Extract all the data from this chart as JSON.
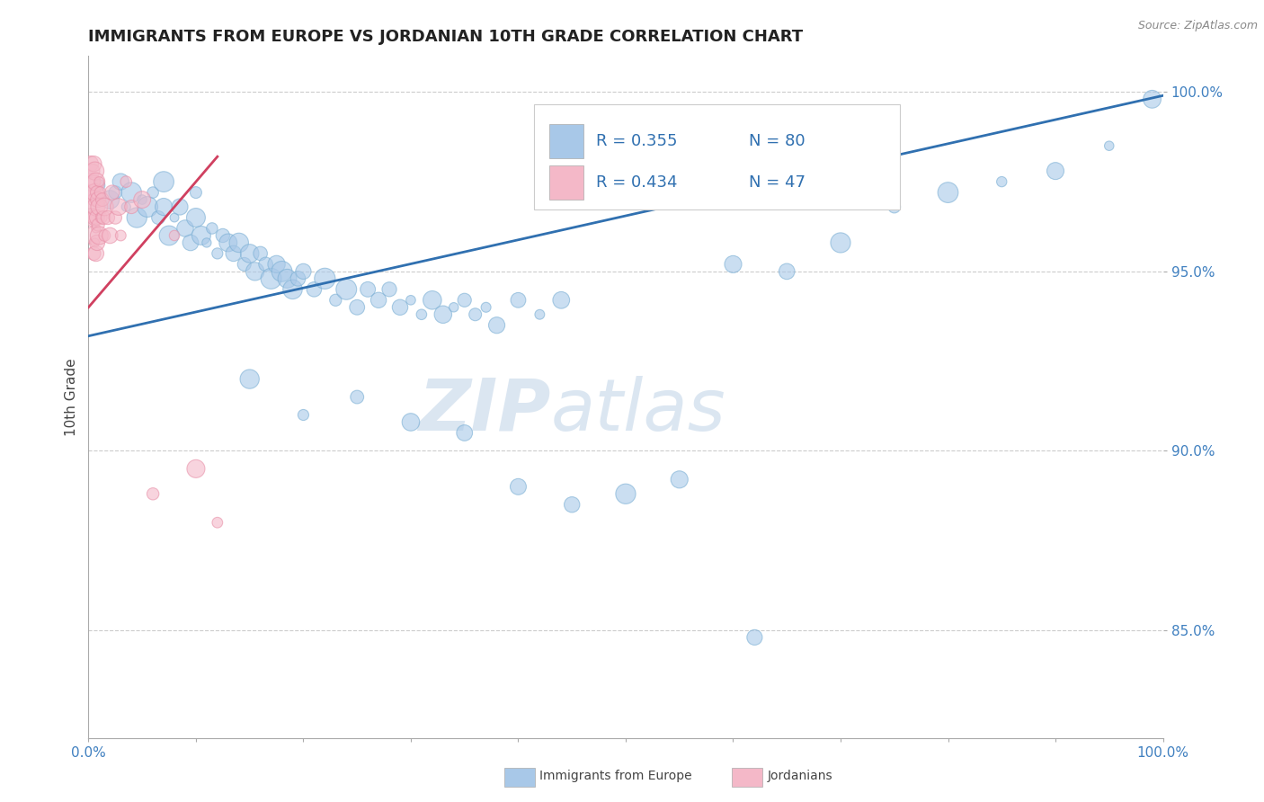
{
  "title": "IMMIGRANTS FROM EUROPE VS JORDANIAN 10TH GRADE CORRELATION CHART",
  "source": "Source: ZipAtlas.com",
  "ylabel": "10th Grade",
  "legend_blue_label": "Immigrants from Europe",
  "legend_pink_label": "Jordanians",
  "R_blue": 0.355,
  "N_blue": 80,
  "R_pink": 0.434,
  "N_pink": 47,
  "blue_color": "#a8c8e8",
  "pink_color": "#f4b8c8",
  "blue_edge_color": "#7aafd4",
  "pink_edge_color": "#e890a8",
  "blue_line_color": "#3070b0",
  "pink_line_color": "#d04060",
  "watermark_color": "#d8e4f0",
  "ytick_color": "#4080c0",
  "xtick_color": "#4080c0",
  "blue_dots": [
    [
      0.01,
      0.974
    ],
    [
      0.02,
      0.97
    ],
    [
      0.025,
      0.972
    ],
    [
      0.03,
      0.975
    ],
    [
      0.035,
      0.968
    ],
    [
      0.04,
      0.972
    ],
    [
      0.045,
      0.965
    ],
    [
      0.05,
      0.97
    ],
    [
      0.055,
      0.968
    ],
    [
      0.06,
      0.972
    ],
    [
      0.065,
      0.965
    ],
    [
      0.07,
      0.968
    ],
    [
      0.07,
      0.975
    ],
    [
      0.075,
      0.96
    ],
    [
      0.08,
      0.965
    ],
    [
      0.085,
      0.968
    ],
    [
      0.09,
      0.962
    ],
    [
      0.095,
      0.958
    ],
    [
      0.1,
      0.965
    ],
    [
      0.1,
      0.972
    ],
    [
      0.105,
      0.96
    ],
    [
      0.11,
      0.958
    ],
    [
      0.115,
      0.962
    ],
    [
      0.12,
      0.955
    ],
    [
      0.125,
      0.96
    ],
    [
      0.13,
      0.958
    ],
    [
      0.135,
      0.955
    ],
    [
      0.14,
      0.958
    ],
    [
      0.145,
      0.952
    ],
    [
      0.15,
      0.955
    ],
    [
      0.155,
      0.95
    ],
    [
      0.16,
      0.955
    ],
    [
      0.165,
      0.952
    ],
    [
      0.17,
      0.948
    ],
    [
      0.175,
      0.952
    ],
    [
      0.18,
      0.95
    ],
    [
      0.185,
      0.948
    ],
    [
      0.19,
      0.945
    ],
    [
      0.195,
      0.948
    ],
    [
      0.2,
      0.95
    ],
    [
      0.21,
      0.945
    ],
    [
      0.22,
      0.948
    ],
    [
      0.23,
      0.942
    ],
    [
      0.24,
      0.945
    ],
    [
      0.25,
      0.94
    ],
    [
      0.26,
      0.945
    ],
    [
      0.27,
      0.942
    ],
    [
      0.28,
      0.945
    ],
    [
      0.29,
      0.94
    ],
    [
      0.3,
      0.942
    ],
    [
      0.31,
      0.938
    ],
    [
      0.32,
      0.942
    ],
    [
      0.33,
      0.938
    ],
    [
      0.34,
      0.94
    ],
    [
      0.35,
      0.942
    ],
    [
      0.36,
      0.938
    ],
    [
      0.37,
      0.94
    ],
    [
      0.38,
      0.935
    ],
    [
      0.4,
      0.942
    ],
    [
      0.42,
      0.938
    ],
    [
      0.44,
      0.942
    ],
    [
      0.15,
      0.92
    ],
    [
      0.2,
      0.91
    ],
    [
      0.25,
      0.915
    ],
    [
      0.3,
      0.908
    ],
    [
      0.35,
      0.905
    ],
    [
      0.4,
      0.89
    ],
    [
      0.45,
      0.885
    ],
    [
      0.5,
      0.888
    ],
    [
      0.55,
      0.892
    ],
    [
      0.6,
      0.952
    ],
    [
      0.62,
      0.848
    ],
    [
      0.65,
      0.95
    ],
    [
      0.7,
      0.958
    ],
    [
      0.75,
      0.968
    ],
    [
      0.8,
      0.972
    ],
    [
      0.85,
      0.975
    ],
    [
      0.9,
      0.978
    ],
    [
      0.95,
      0.985
    ],
    [
      0.99,
      0.998
    ]
  ],
  "pink_dots": [
    [
      0.002,
      0.98
    ],
    [
      0.003,
      0.975
    ],
    [
      0.003,
      0.97
    ],
    [
      0.004,
      0.978
    ],
    [
      0.004,
      0.972
    ],
    [
      0.004,
      0.965
    ],
    [
      0.005,
      0.98
    ],
    [
      0.005,
      0.975
    ],
    [
      0.005,
      0.97
    ],
    [
      0.005,
      0.965
    ],
    [
      0.005,
      0.96
    ],
    [
      0.005,
      0.955
    ],
    [
      0.006,
      0.978
    ],
    [
      0.006,
      0.972
    ],
    [
      0.006,
      0.965
    ],
    [
      0.006,
      0.958
    ],
    [
      0.007,
      0.975
    ],
    [
      0.007,
      0.968
    ],
    [
      0.007,
      0.962
    ],
    [
      0.007,
      0.955
    ],
    [
      0.008,
      0.972
    ],
    [
      0.008,
      0.965
    ],
    [
      0.008,
      0.958
    ],
    [
      0.009,
      0.97
    ],
    [
      0.009,
      0.963
    ],
    [
      0.01,
      0.975
    ],
    [
      0.01,
      0.968
    ],
    [
      0.01,
      0.96
    ],
    [
      0.011,
      0.972
    ],
    [
      0.012,
      0.965
    ],
    [
      0.013,
      0.97
    ],
    [
      0.014,
      0.965
    ],
    [
      0.015,
      0.968
    ],
    [
      0.015,
      0.96
    ],
    [
      0.018,
      0.965
    ],
    [
      0.02,
      0.96
    ],
    [
      0.022,
      0.972
    ],
    [
      0.025,
      0.965
    ],
    [
      0.028,
      0.968
    ],
    [
      0.03,
      0.96
    ],
    [
      0.035,
      0.975
    ],
    [
      0.04,
      0.968
    ],
    [
      0.05,
      0.97
    ],
    [
      0.06,
      0.888
    ],
    [
      0.08,
      0.96
    ],
    [
      0.1,
      0.895
    ],
    [
      0.12,
      0.88
    ]
  ],
  "blue_trend_x": [
    0.0,
    1.0
  ],
  "blue_trend_y": [
    0.932,
    0.999
  ],
  "pink_trend_x": [
    0.0,
    0.12
  ],
  "pink_trend_y": [
    0.94,
    0.982
  ],
  "xlim": [
    0.0,
    1.0
  ],
  "ylim": [
    0.82,
    1.01
  ],
  "y_ticks": [
    0.85,
    0.9,
    0.95,
    1.0
  ],
  "y_tick_labels": [
    "85.0%",
    "90.0%",
    "95.0%",
    "100.0%"
  ]
}
